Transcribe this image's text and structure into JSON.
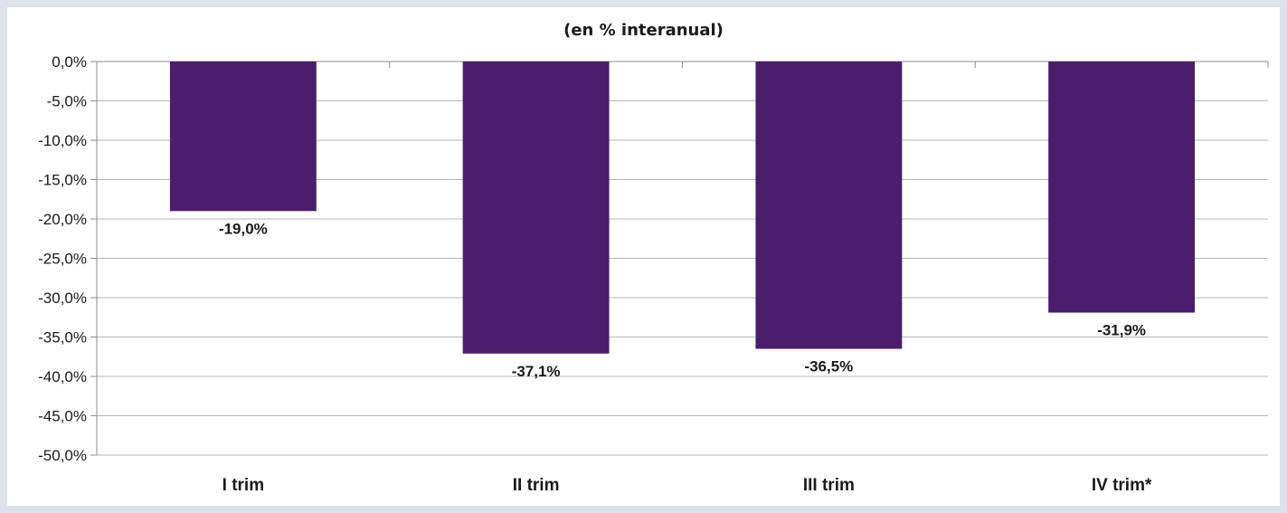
{
  "chart_data": {
    "type": "bar",
    "title": "(en % interanual)",
    "categories": [
      "I trim",
      "II trim",
      "III trim",
      "IV trim*"
    ],
    "values": [
      -19.0,
      -37.1,
      -36.5,
      -31.9
    ],
    "data_labels": [
      "-19,0%",
      "-37,1%",
      "-36,5%",
      "-31,9%"
    ],
    "ylim": [
      -50,
      0
    ],
    "y_ticks": [
      0,
      -5,
      -10,
      -15,
      -20,
      -25,
      -30,
      -35,
      -40,
      -45,
      -50
    ],
    "y_tick_labels": [
      "0,0%",
      "-5,0%",
      "-10,0%",
      "-15,0%",
      "-20,0%",
      "-25,0%",
      "-30,0%",
      "-35,0%",
      "-40,0%",
      "-45,0%",
      "-50,0%"
    ],
    "xlabel": "",
    "ylabel": "",
    "grid": true,
    "legend": false,
    "bar_color": "#4a1e6a"
  }
}
